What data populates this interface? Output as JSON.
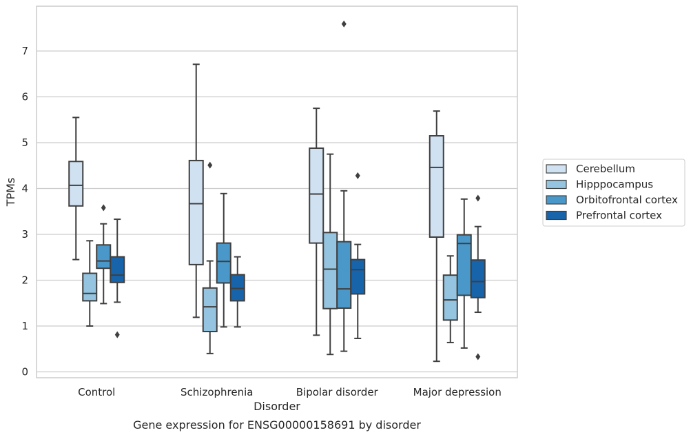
{
  "chart_data": {
    "type": "box",
    "title": "",
    "caption": "Gene expression for ENSG00000158691 by disorder",
    "xlabel": "Disorder",
    "ylabel": "TPMs",
    "ylim": [
      -0.12,
      7.98
    ],
    "yticks": [
      0,
      1,
      2,
      3,
      4,
      5,
      6,
      7
    ],
    "grid": "horizontal",
    "legend_position": "right",
    "categories": [
      "Control",
      "Schizophrenia",
      "Bipolar disorder",
      "Major depression"
    ],
    "series": [
      {
        "name": "Cerebellum",
        "color": "#d0e1f2",
        "boxes": [
          {
            "whisker_low": 2.45,
            "q1": 3.62,
            "median": 4.07,
            "q3": 4.59,
            "whisker_high": 5.55,
            "outliers": []
          },
          {
            "whisker_low": 1.19,
            "q1": 2.34,
            "median": 3.67,
            "q3": 4.61,
            "whisker_high": 6.71,
            "outliers": []
          },
          {
            "whisker_low": 0.8,
            "q1": 2.81,
            "median": 3.88,
            "q3": 4.88,
            "whisker_high": 5.75,
            "outliers": []
          },
          {
            "whisker_low": 0.23,
            "q1": 2.94,
            "median": 4.46,
            "q3": 5.15,
            "whisker_high": 5.69,
            "outliers": []
          }
        ]
      },
      {
        "name": "Hipppocampus",
        "color": "#94c4df",
        "boxes": [
          {
            "whisker_low": 1.0,
            "q1": 1.55,
            "median": 1.71,
            "q3": 2.15,
            "whisker_high": 2.86,
            "outliers": []
          },
          {
            "whisker_low": 0.4,
            "q1": 0.88,
            "median": 1.42,
            "q3": 1.83,
            "whisker_high": 2.42,
            "outliers": [
              4.51
            ]
          },
          {
            "whisker_low": 0.38,
            "q1": 1.38,
            "median": 2.24,
            "q3": 3.04,
            "whisker_high": 4.75,
            "outliers": []
          },
          {
            "whisker_low": 0.64,
            "q1": 1.13,
            "median": 1.57,
            "q3": 2.11,
            "whisker_high": 2.53,
            "outliers": []
          }
        ]
      },
      {
        "name": "Orbitofrontal cortex",
        "color": "#4a98c9",
        "boxes": [
          {
            "whisker_low": 1.49,
            "q1": 2.26,
            "median": 2.42,
            "q3": 2.77,
            "whisker_high": 3.23,
            "outliers": [
              3.58
            ]
          },
          {
            "whisker_low": 0.98,
            "q1": 1.94,
            "median": 2.41,
            "q3": 2.81,
            "whisker_high": 3.89,
            "outliers": []
          },
          {
            "whisker_low": 0.45,
            "q1": 1.39,
            "median": 1.81,
            "q3": 2.84,
            "whisker_high": 3.95,
            "outliers": [
              7.59
            ]
          },
          {
            "whisker_low": 0.52,
            "q1": 1.67,
            "median": 2.8,
            "q3": 2.99,
            "whisker_high": 3.77,
            "outliers": []
          }
        ]
      },
      {
        "name": "Prefrontal cortex",
        "color": "#1764ab",
        "boxes": [
          {
            "whisker_low": 1.52,
            "q1": 1.95,
            "median": 2.11,
            "q3": 2.51,
            "whisker_high": 3.33,
            "outliers": [
              0.81
            ]
          },
          {
            "whisker_low": 0.98,
            "q1": 1.55,
            "median": 1.82,
            "q3": 2.12,
            "whisker_high": 2.51,
            "outliers": []
          },
          {
            "whisker_low": 0.73,
            "q1": 1.7,
            "median": 2.23,
            "q3": 2.45,
            "whisker_high": 2.78,
            "outliers": [
              4.28
            ]
          },
          {
            "whisker_low": 1.3,
            "q1": 1.62,
            "median": 1.97,
            "q3": 2.44,
            "whisker_high": 3.17,
            "outliers": [
              3.79,
              0.33
            ]
          }
        ]
      }
    ]
  }
}
